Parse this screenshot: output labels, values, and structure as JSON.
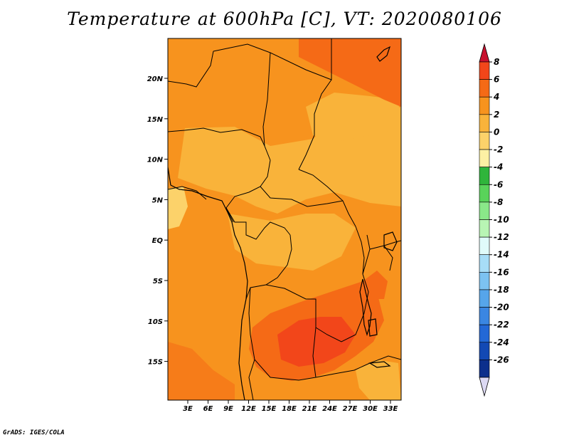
{
  "title": "Temperature at 600hPa [C], VT: 2020080106",
  "credit": "GrADS: IGES/COLA",
  "map": {
    "lon_labels": [
      "3E",
      "6E",
      "9E",
      "12E",
      "15E",
      "18E",
      "21E",
      "24E",
      "27E",
      "30E",
      "33E"
    ],
    "lat_labels": [
      "20N",
      "15N",
      "10N",
      "5N",
      "EQ",
      "5S",
      "10S",
      "15S"
    ]
  },
  "colorbar": {
    "labels": [
      "8",
      "6",
      "4",
      "2",
      "0",
      "-2",
      "-4",
      "-6",
      "-8",
      "-10",
      "-12",
      "-14",
      "-16",
      "-18",
      "-20",
      "-22",
      "-24",
      "-26"
    ],
    "colors": {
      "top_triangle": "#c8102e",
      "bands": [
        "#f2461a",
        "#f56a16",
        "#f7931e",
        "#f9b33a",
        "#fcd26a",
        "#fdf0a4",
        "#2fb53b",
        "#59d35a",
        "#8ae889",
        "#b8f5b4",
        "#e0fbfa",
        "#a7ddf7",
        "#7cc2f1",
        "#56a5ea",
        "#3a86e2",
        "#2368d6",
        "#1349b4",
        "#0c2f8c",
        "#0a1a66"
      ],
      "bottom_triangle": "#dcd9f3"
    }
  }
}
